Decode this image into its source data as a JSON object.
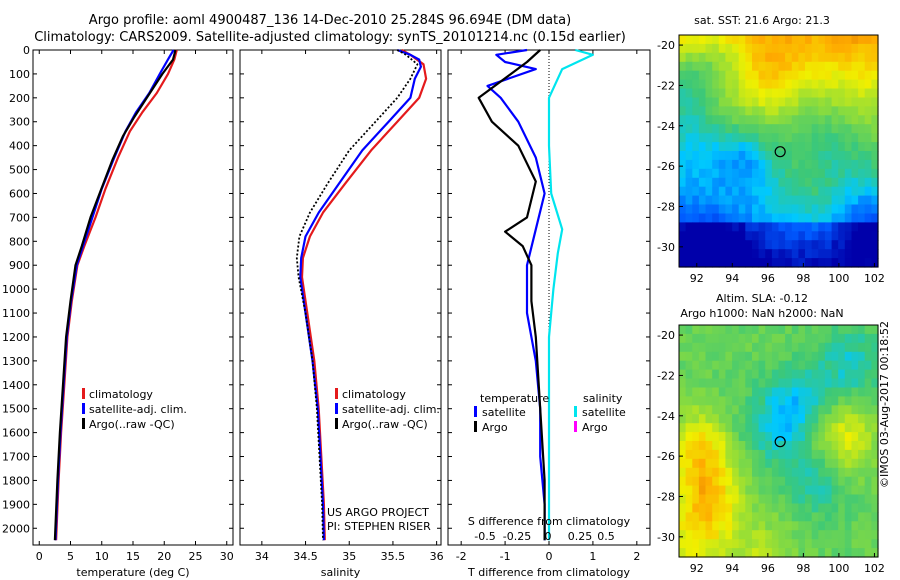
{
  "header": {
    "title_line1": "Argo profile: aoml 4900487_136 14-Dec-2010 25.284S 96.694E (DM data)",
    "title_line2": "Climatology: CARS2009. Satellite-adjusted climatology: synTS_20101214.nc (0.15d earlier)"
  },
  "timestamp": "©IMOS 03-Aug-2017 00:18:52",
  "colors": {
    "climatology": "#e41a1c",
    "satellite": "#0000ff",
    "argo": "#000000",
    "salinity_satellite": "#00e5ee",
    "salinity_argo": "#ff00ff"
  },
  "chart_data": [
    {
      "type": "line",
      "id": "temperature",
      "xlabel": "temperature (deg C)",
      "xlim": [
        -1,
        31
      ],
      "ylim": [
        0,
        2070
      ],
      "xticks": [
        "0",
        "5",
        "10",
        "15",
        "20",
        "25",
        "30"
      ],
      "yticks": [
        "0",
        "100",
        "200",
        "300",
        "400",
        "500",
        "600",
        "700",
        "800",
        "900",
        "1000",
        "1100",
        "1200",
        "1300",
        "1400",
        "1500",
        "1600",
        "1700",
        "1800",
        "1900",
        "2000"
      ],
      "legend": [
        "climatology",
        "satellite-adj. clim.",
        "Argo(..raw -QC)"
      ],
      "series": [
        {
          "name": "climatology",
          "color": "#e41a1c",
          "points": [
            [
              22.0,
              0
            ],
            [
              21.6,
              40
            ],
            [
              20.6,
              100
            ],
            [
              18.8,
              180
            ],
            [
              16.5,
              260
            ],
            [
              14.5,
              340
            ],
            [
              12.6,
              450
            ],
            [
              10.6,
              580
            ],
            [
              9.0,
              700
            ],
            [
              7.2,
              820
            ],
            [
              6.1,
              900
            ],
            [
              5.2,
              1050
            ],
            [
              4.5,
              1200
            ],
            [
              4.0,
              1400
            ],
            [
              3.5,
              1600
            ],
            [
              3.1,
              1800
            ],
            [
              2.7,
              2050
            ]
          ]
        },
        {
          "name": "satellite-adj. clim.",
          "color": "#0000ff",
          "points": [
            [
              21.5,
              0
            ],
            [
              20.8,
              30
            ],
            [
              19.5,
              90
            ],
            [
              17.6,
              180
            ],
            [
              15.5,
              260
            ],
            [
              13.8,
              340
            ],
            [
              12.0,
              450
            ],
            [
              10.0,
              580
            ],
            [
              8.5,
              700
            ],
            [
              7.0,
              820
            ],
            [
              6.0,
              900
            ],
            [
              5.1,
              1050
            ],
            [
              4.4,
              1200
            ],
            [
              3.9,
              1400
            ],
            [
              3.4,
              1600
            ],
            [
              3.0,
              1800
            ],
            [
              2.6,
              2050
            ]
          ]
        },
        {
          "name": "Argo(..raw -QC)",
          "color": "#000000",
          "points": [
            [
              21.8,
              0
            ],
            [
              21.4,
              40
            ],
            [
              19.7,
              100
            ],
            [
              17.2,
              200
            ],
            [
              15.2,
              280
            ],
            [
              13.4,
              360
            ],
            [
              11.7,
              460
            ],
            [
              9.8,
              590
            ],
            [
              8.2,
              700
            ],
            [
              6.8,
              820
            ],
            [
              5.8,
              900
            ],
            [
              5.0,
              1050
            ],
            [
              4.3,
              1200
            ],
            [
              3.8,
              1400
            ],
            [
              3.3,
              1600
            ],
            [
              2.9,
              1800
            ],
            [
              2.5,
              2050
            ]
          ]
        }
      ]
    },
    {
      "type": "line",
      "id": "salinity",
      "xlabel": "salinity",
      "xlim": [
        33.75,
        36.05
      ],
      "ylim": [
        0,
        2070
      ],
      "xticks": [
        "34",
        "34.5",
        "35",
        "35.5",
        "36"
      ],
      "legend": [
        "climatology",
        "satellite-adj. clim.",
        "Argo(..raw -QC)"
      ],
      "annotation": [
        "US ARGO PROJECT",
        "PI: STEPHEN RISER"
      ],
      "series": [
        {
          "name": "climatology",
          "color": "#e41a1c",
          "points": [
            [
              35.6,
              0
            ],
            [
              35.7,
              20
            ],
            [
              35.85,
              60
            ],
            [
              35.88,
              120
            ],
            [
              35.8,
              200
            ],
            [
              35.55,
              300
            ],
            [
              35.25,
              420
            ],
            [
              34.95,
              560
            ],
            [
              34.7,
              680
            ],
            [
              34.55,
              780
            ],
            [
              34.47,
              870
            ],
            [
              34.46,
              950
            ],
            [
              34.52,
              1100
            ],
            [
              34.6,
              1300
            ],
            [
              34.65,
              1500
            ],
            [
              34.68,
              1700
            ],
            [
              34.71,
              1900
            ],
            [
              34.72,
              2050
            ]
          ]
        },
        {
          "name": "satellite-adj. clim.",
          "color": "#0000ff",
          "points": [
            [
              35.55,
              0
            ],
            [
              35.7,
              20
            ],
            [
              35.8,
              40
            ],
            [
              35.82,
              70
            ],
            [
              35.75,
              120
            ],
            [
              35.7,
              200
            ],
            [
              35.45,
              300
            ],
            [
              35.15,
              420
            ],
            [
              34.88,
              560
            ],
            [
              34.65,
              680
            ],
            [
              34.5,
              780
            ],
            [
              34.45,
              870
            ],
            [
              34.44,
              950
            ],
            [
              34.5,
              1100
            ],
            [
              34.58,
              1300
            ],
            [
              34.64,
              1500
            ],
            [
              34.67,
              1700
            ],
            [
              34.7,
              1900
            ],
            [
              34.71,
              2050
            ]
          ]
        },
        {
          "name": "Argo(..raw -QC)",
          "color": "#000000",
          "dash": true,
          "points": [
            [
              35.55,
              0
            ],
            [
              35.65,
              20
            ],
            [
              35.78,
              60
            ],
            [
              35.7,
              120
            ],
            [
              35.55,
              200
            ],
            [
              35.3,
              300
            ],
            [
              35.0,
              420
            ],
            [
              34.75,
              560
            ],
            [
              34.55,
              680
            ],
            [
              34.43,
              780
            ],
            [
              34.4,
              870
            ],
            [
              34.42,
              950
            ],
            [
              34.5,
              1100
            ],
            [
              34.58,
              1300
            ],
            [
              34.63,
              1500
            ],
            [
              34.66,
              1700
            ],
            [
              34.69,
              1900
            ],
            [
              34.7,
              2050
            ]
          ]
        }
      ]
    },
    {
      "type": "line",
      "id": "difference",
      "xlabel": "T difference from climatology",
      "xlabel_top": "S difference from climatology",
      "xlim": [
        -2.3,
        2.3
      ],
      "ylim": [
        0,
        2070
      ],
      "xticks": [
        "-2",
        "-1",
        "0",
        "1",
        "2"
      ],
      "s_ticks": [
        "-0.5",
        "-0.25",
        "0",
        "0.25",
        "0.5"
      ],
      "legend": {
        "temperature_heading": "temperature",
        "salinity_heading": "salinity",
        "labels": [
          "satellite",
          "Argo",
          "satellite",
          "Argo"
        ]
      },
      "series": [
        {
          "name": "temperature satellite",
          "color": "#0000ff",
          "points": [
            [
              -0.5,
              0
            ],
            [
              -1.2,
              20
            ],
            [
              -1.0,
              50
            ],
            [
              -0.3,
              80
            ],
            [
              -1.4,
              150
            ],
            [
              -1.1,
              200
            ],
            [
              -0.7,
              300
            ],
            [
              -0.3,
              450
            ],
            [
              -0.1,
              600
            ],
            [
              -0.3,
              750
            ],
            [
              -0.5,
              900
            ],
            [
              -0.5,
              1100
            ],
            [
              -0.3,
              1300
            ],
            [
              -0.2,
              1500
            ],
            [
              -0.2,
              1700
            ],
            [
              -0.1,
              1900
            ],
            [
              -0.1,
              2050
            ]
          ]
        },
        {
          "name": "temperature Argo",
          "color": "#000000",
          "points": [
            [
              -0.2,
              0
            ],
            [
              -0.5,
              50
            ],
            [
              -1.6,
              200
            ],
            [
              -1.3,
              300
            ],
            [
              -0.7,
              400
            ],
            [
              -0.3,
              550
            ],
            [
              -0.5,
              700
            ],
            [
              -1.0,
              760
            ],
            [
              -0.6,
              820
            ],
            [
              -0.4,
              900
            ],
            [
              -0.4,
              1050
            ],
            [
              -0.3,
              1200
            ],
            [
              -0.2,
              1500
            ],
            [
              -0.1,
              1800
            ],
            [
              -0.1,
              2050
            ]
          ]
        },
        {
          "name": "salinity satellite",
          "color": "#00e5ee",
          "points": [
            [
              0.6,
              0
            ],
            [
              1.0,
              20
            ],
            [
              0.3,
              80
            ],
            [
              0.0,
              200
            ],
            [
              0.0,
              400
            ],
            [
              0.05,
              600
            ],
            [
              0.3,
              750
            ],
            [
              0.2,
              850
            ],
            [
              0.1,
              1000
            ],
            [
              0.0,
              1200
            ],
            [
              0.0,
              1600
            ],
            [
              0.0,
              2050
            ]
          ]
        }
      ]
    }
  ],
  "maps": [
    {
      "id": "sst",
      "title": "sat. SST: 21.6 Argo: 21.3",
      "xticks": [
        "92",
        "94",
        "96",
        "98",
        "100",
        "102"
      ],
      "yticks": [
        "-20",
        "-22",
        "-24",
        "-26",
        "-28",
        "-30"
      ]
    },
    {
      "id": "sla",
      "title1": "Altim. SLA: -0.12",
      "title2": "Argo h1000: NaN h2000: NaN",
      "xticks": [
        "92",
        "94",
        "96",
        "98",
        "100",
        "102"
      ],
      "yticks": [
        "-20",
        "-22",
        "-24",
        "-26",
        "-28",
        "-30"
      ]
    }
  ],
  "marker": {
    "lon": 96.694,
    "lat": -25.284
  }
}
